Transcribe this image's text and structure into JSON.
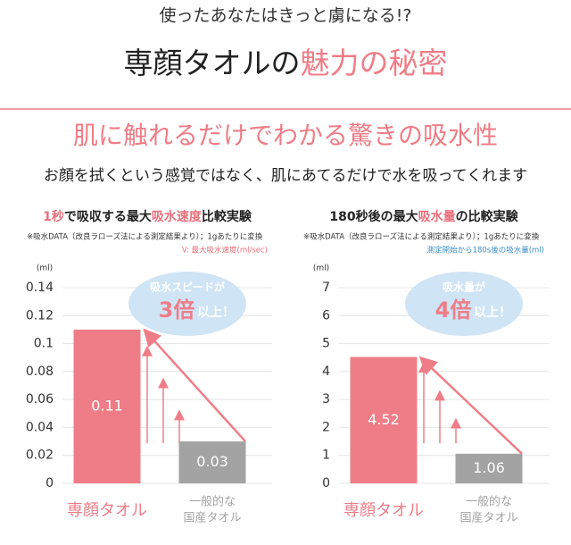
{
  "header": {
    "lead": "使ったあなたはきっと虜になる!?",
    "title_main": "専顔タオルの",
    "title_accent": "魅力の秘密"
  },
  "banner": "肌に触れるだけでわかる驚きの吸水性",
  "subtitle": "お顔を拭くという感覚ではなく、肌にあてるだけで水を吸ってくれます",
  "chart_data": [
    {
      "type": "bar",
      "title": [
        {
          "text": "1秒",
          "color": "#e9707c"
        },
        {
          "text": "で吸収する最大",
          "color": "#222222"
        },
        {
          "text": "吸水速度",
          "color": "#e9707c"
        },
        {
          "text": "比較実験",
          "color": "#222222"
        }
      ],
      "note": "※吸水DATA（改良ラローズ法による測定結果より）；1gあたりに変換",
      "legend_note": {
        "text": "V: 最大吸水速度(ml/sec)",
        "color": "#e9707c"
      },
      "unit": "(ml)",
      "categories": [
        [
          "専顔タオル"
        ],
        [
          "一般的な",
          "国産タオル"
        ]
      ],
      "values": [
        0.11,
        0.03
      ],
      "colors": [
        "#ef7d87",
        "#a3a3a3"
      ],
      "ylim": [
        0,
        0.14
      ],
      "yticks": [
        0,
        0.02,
        0.04,
        0.06,
        0.08,
        0.1,
        0.12,
        0.14
      ],
      "grid": true,
      "callout": [
        "吸水スピードが",
        "3倍",
        "以上！"
      ]
    },
    {
      "type": "bar",
      "title": [
        {
          "text": "180秒後の最大",
          "color": "#222222"
        },
        {
          "text": "吸水量",
          "color": "#e9707c"
        },
        {
          "text": "の比較実験",
          "color": "#222222"
        }
      ],
      "note": "※吸水DATA（改良ラローズ法による測定結果より）；1gあたりに変換",
      "legend_note": {
        "text": "測定開始から180s後の吸水量(ml)",
        "color": "#3d8fc6"
      },
      "unit": "(ml)",
      "categories": [
        [
          "専顔タオル"
        ],
        [
          "一般的な",
          "国産タオル"
        ]
      ],
      "values": [
        4.52,
        1.06
      ],
      "colors": [
        "#ef7d87",
        "#a3a3a3"
      ],
      "ylim": [
        0,
        7
      ],
      "yticks": [
        0,
        1,
        2,
        3,
        4,
        5,
        6,
        7
      ],
      "grid": true,
      "callout": [
        "吸水量が",
        "4倍",
        "以上！"
      ]
    }
  ]
}
